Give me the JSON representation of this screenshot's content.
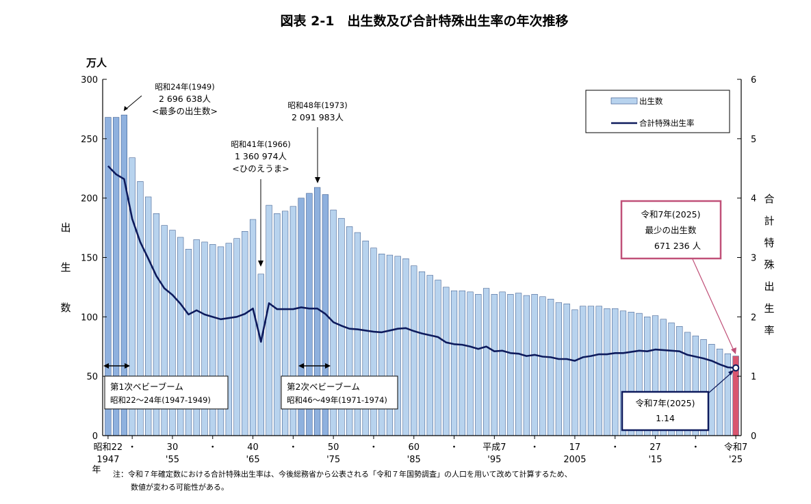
{
  "title": "図表 2-1　出生数及び合計特殊出生率の年次推移",
  "left_axis": {
    "unit": "万人",
    "label_chars": [
      "出",
      "生",
      "数"
    ],
    "ticks": [
      "0",
      "50",
      "100",
      "150",
      "200",
      "250",
      "300"
    ]
  },
  "right_axis": {
    "label_chars": [
      "合",
      "計",
      "特",
      "殊",
      "出",
      "生",
      "率"
    ],
    "ticks": [
      "0",
      "1",
      "2",
      "3",
      "4",
      "5",
      "6"
    ]
  },
  "x_axis": {
    "year_label": "年",
    "ticks": [
      {
        "year": 1947,
        "top": "昭和22",
        "bottom": "1947"
      },
      {
        "year": 1950,
        "top": "・",
        "bottom": ""
      },
      {
        "year": 1955,
        "top": "30",
        "bottom": "'55"
      },
      {
        "year": 1960,
        "top": "・",
        "bottom": ""
      },
      {
        "year": 1965,
        "top": "40",
        "bottom": "'65"
      },
      {
        "year": 1970,
        "top": "・",
        "bottom": ""
      },
      {
        "year": 1975,
        "top": "50",
        "bottom": "'75"
      },
      {
        "year": 1980,
        "top": "・",
        "bottom": ""
      },
      {
        "year": 1985,
        "top": "60",
        "bottom": "'85"
      },
      {
        "year": 1990,
        "top": "・",
        "bottom": ""
      },
      {
        "year": 1995,
        "top": "平成7",
        "bottom": "'95"
      },
      {
        "year": 2000,
        "top": "・",
        "bottom": ""
      },
      {
        "year": 2005,
        "top": "17",
        "bottom": "2005"
      },
      {
        "year": 2010,
        "top": "・",
        "bottom": ""
      },
      {
        "year": 2015,
        "top": "27",
        "bottom": "'15"
      },
      {
        "year": 2020,
        "top": "・",
        "bottom": ""
      },
      {
        "year": 2025,
        "top": "令和7",
        "bottom": "'25"
      }
    ]
  },
  "legend": {
    "births": "出生数",
    "tfr": "合計特殊出生率"
  },
  "annotations": {
    "y1949": {
      "lines": [
        "昭和24年(1949)",
        "2 696 638人",
        "<最多の出生数>"
      ]
    },
    "y1966": {
      "lines": [
        "昭和41年(1966)",
        "1 360 974人",
        "<ひのえうま>"
      ]
    },
    "y1973": {
      "lines": [
        "昭和48年(1973)",
        "2 091 983人"
      ]
    },
    "y2025_births": {
      "lines": [
        "令和7年(2025)",
        "最少の出生数",
        "671 236 人"
      ]
    },
    "y2025_tfr": {
      "lines": [
        "令和7年(2025)",
        "1.14"
      ]
    }
  },
  "booms": {
    "first": {
      "name": "第1次ベビーブーム",
      "range": "昭和22～24年(1947-1949)"
    },
    "second": {
      "name": "第2次ベビーブーム",
      "range": "昭和46～49年(1971-1974)"
    }
  },
  "note": {
    "line1": "注：令和７年確定数における合計特殊出生率は、今後総務省から公表される「令和７年国勢調査」の人口を用いて改めて計算するため、",
    "line2": "数値が変わる可能性がある。"
  },
  "colors": {
    "bar": "#b8d3ee",
    "bar_boom": "#8fb1de",
    "bar_2025": "#d9556f",
    "bar_edge": "#2a4a80",
    "line": "#0d1a5c",
    "callout_pink": "#c05078",
    "callout_navy": "#0d1a5c"
  },
  "chart_data": {
    "type": "bar",
    "title": "図表 2-1　出生数及び合計特殊出生率の年次推移",
    "x": [
      1947,
      1948,
      1949,
      1950,
      1951,
      1952,
      1953,
      1954,
      1955,
      1956,
      1957,
      1958,
      1959,
      1960,
      1961,
      1962,
      1963,
      1964,
      1965,
      1966,
      1967,
      1968,
      1969,
      1970,
      1971,
      1972,
      1973,
      1974,
      1975,
      1976,
      1977,
      1978,
      1979,
      1980,
      1981,
      1982,
      1983,
      1984,
      1985,
      1986,
      1987,
      1988,
      1989,
      1990,
      1991,
      1992,
      1993,
      1994,
      1995,
      1996,
      1997,
      1998,
      1999,
      2000,
      2001,
      2002,
      2003,
      2004,
      2005,
      2006,
      2007,
      2008,
      2009,
      2010,
      2011,
      2012,
      2013,
      2014,
      2015,
      2016,
      2017,
      2018,
      2019,
      2020,
      2021,
      2022,
      2023,
      2024,
      2025
    ],
    "series": [
      {
        "name": "出生数",
        "axis": "left",
        "unit": "万人",
        "values": [
          268,
          268,
          270,
          234,
          214,
          201,
          187,
          177,
          173,
          167,
          157,
          165,
          163,
          161,
          159,
          162,
          166,
          172,
          182,
          136,
          194,
          187,
          189,
          193,
          200,
          204,
          209,
          203,
          190,
          183,
          176,
          171,
          164,
          158,
          153,
          152,
          151,
          149,
          143,
          138,
          135,
          131,
          125,
          122,
          122,
          121,
          119,
          124,
          119,
          121,
          119,
          120,
          118,
          119,
          117,
          115,
          112,
          111,
          106,
          109,
          109,
          109,
          107,
          107,
          105,
          104,
          103,
          100,
          101,
          98,
          95,
          92,
          87,
          84,
          81,
          77,
          73,
          69,
          67
        ]
      },
      {
        "name": "合計特殊出生率",
        "axis": "right",
        "values": [
          4.54,
          4.4,
          4.32,
          3.65,
          3.26,
          2.98,
          2.69,
          2.48,
          2.37,
          2.22,
          2.04,
          2.11,
          2.04,
          2.0,
          1.96,
          1.98,
          2.0,
          2.05,
          2.14,
          1.58,
          2.23,
          2.13,
          2.13,
          2.13,
          2.16,
          2.14,
          2.14,
          2.05,
          1.91,
          1.85,
          1.8,
          1.79,
          1.77,
          1.75,
          1.74,
          1.77,
          1.8,
          1.81,
          1.76,
          1.72,
          1.69,
          1.66,
          1.57,
          1.54,
          1.53,
          1.5,
          1.46,
          1.5,
          1.42,
          1.43,
          1.39,
          1.38,
          1.34,
          1.36,
          1.33,
          1.32,
          1.29,
          1.29,
          1.26,
          1.32,
          1.34,
          1.37,
          1.37,
          1.39,
          1.39,
          1.41,
          1.43,
          1.42,
          1.45,
          1.44,
          1.43,
          1.42,
          1.36,
          1.33,
          1.3,
          1.26,
          1.2,
          1.15,
          1.14
        ]
      }
    ],
    "ylim_left": [
      0,
      300
    ],
    "ylim_right": [
      0,
      6
    ],
    "xlabel": "年",
    "ylabel_left": "出生数",
    "ylabel_right": "合計特殊出生率",
    "legend_position": "top-right",
    "grid": false
  }
}
